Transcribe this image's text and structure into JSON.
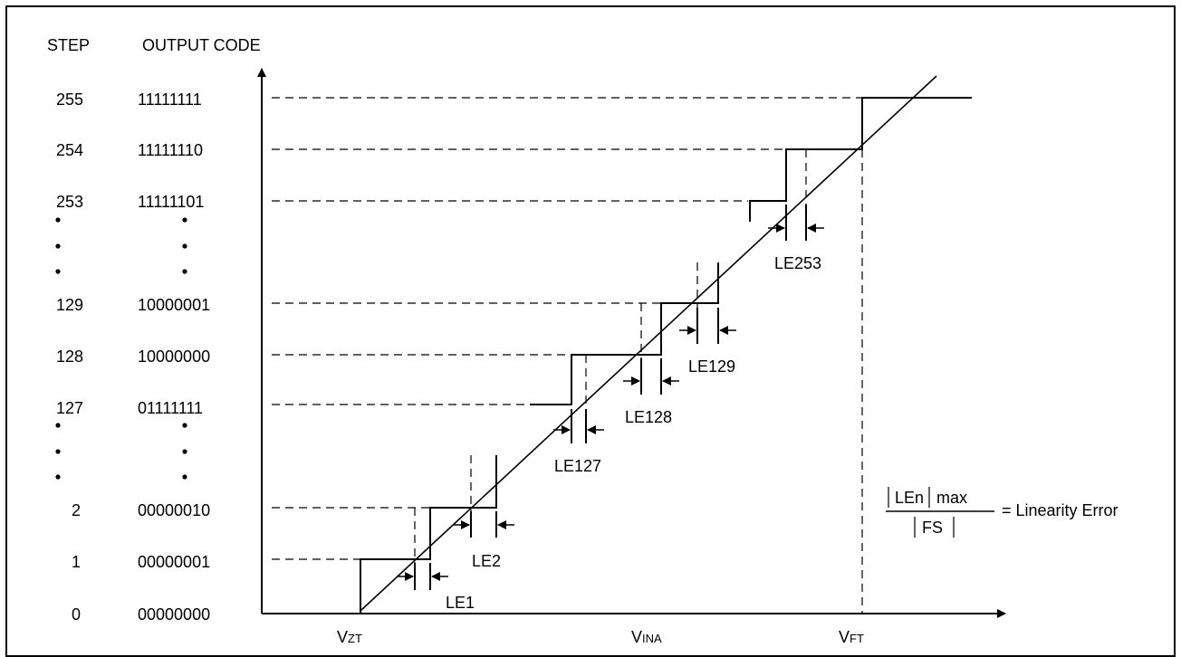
{
  "headers": {
    "step": "STEP",
    "code": "OUTPUT CODE"
  },
  "rows": [
    {
      "step": "255",
      "code": "11111111"
    },
    {
      "step": "254",
      "code": "11111110"
    },
    {
      "step": "253",
      "code": "11111101"
    },
    {
      "step": "129",
      "code": "10000001"
    },
    {
      "step": "128",
      "code": "10000000"
    },
    {
      "step": "127",
      "code": "01111111"
    },
    {
      "step": "2",
      "code": "00000010"
    },
    {
      "step": "1",
      "code": "00000001"
    },
    {
      "step": "0",
      "code": "00000000"
    }
  ],
  "axis": {
    "vzt": {
      "main": "V",
      "sub": "ZT"
    },
    "vina": {
      "main": "V",
      "sub": "INA"
    },
    "vft": {
      "main": "V",
      "sub": "FT"
    }
  },
  "errors": {
    "le1": "LE1",
    "le2": "LE2",
    "le127": "LE127",
    "le128": "LE128",
    "le129": "LE129",
    "le253": "LE253"
  },
  "formula": {
    "numerator": "LEn",
    "numerator_suffix": "max",
    "denominator": "FS",
    "result": "= Linearity Error"
  }
}
